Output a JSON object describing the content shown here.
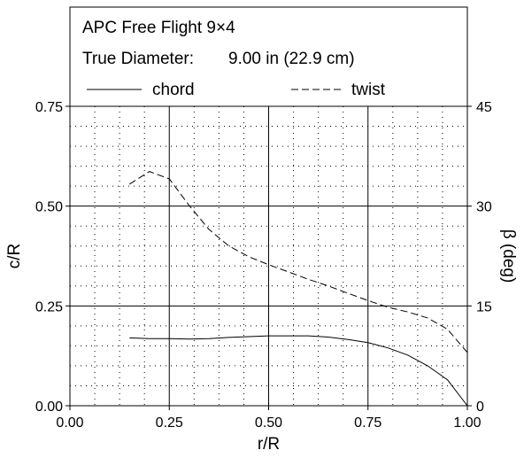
{
  "chart_data": {
    "type": "line",
    "title": "APC Free Flight 9×4",
    "subtitle_label": "True Diameter:",
    "subtitle_value": "9.00 in (22.9 cm)",
    "xlabel": "r/R",
    "ylabel_left": "c/R",
    "ylabel_right": "β (deg)",
    "xlim": [
      0,
      1
    ],
    "ylim_left": [
      0,
      0.75
    ],
    "ylim_right": [
      0,
      45
    ],
    "x_ticks": [
      "0.00",
      "0.25",
      "0.50",
      "0.75",
      "1.00"
    ],
    "y_left_ticks": [
      "0.00",
      "0.25",
      "0.50",
      "0.75"
    ],
    "y_right_ticks": [
      "0",
      "15",
      "30",
      "45"
    ],
    "grid": true,
    "legend_position": "top",
    "series": [
      {
        "name": "chord",
        "axis": "left",
        "line_style": "solid",
        "x": [
          0.15,
          0.2,
          0.25,
          0.3,
          0.35,
          0.4,
          0.45,
          0.5,
          0.55,
          0.6,
          0.65,
          0.7,
          0.75,
          0.8,
          0.85,
          0.9,
          0.95,
          1.0
        ],
        "y": [
          0.17,
          0.168,
          0.168,
          0.167,
          0.168,
          0.171,
          0.173,
          0.175,
          0.175,
          0.175,
          0.172,
          0.166,
          0.158,
          0.145,
          0.127,
          0.1,
          0.065,
          0.0
        ]
      },
      {
        "name": "twist",
        "axis": "right",
        "line_style": "dashed",
        "x": [
          0.15,
          0.2,
          0.25,
          0.3,
          0.35,
          0.4,
          0.45,
          0.5,
          0.55,
          0.6,
          0.65,
          0.7,
          0.75,
          0.8,
          0.85,
          0.9,
          0.95,
          1.0
        ],
        "y": [
          33.3,
          35.2,
          34.1,
          30.1,
          26.5,
          24.0,
          22.4,
          21.2,
          20.1,
          19.0,
          18.0,
          16.9,
          15.8,
          14.8,
          14.1,
          13.2,
          11.5,
          8.0
        ]
      }
    ]
  }
}
